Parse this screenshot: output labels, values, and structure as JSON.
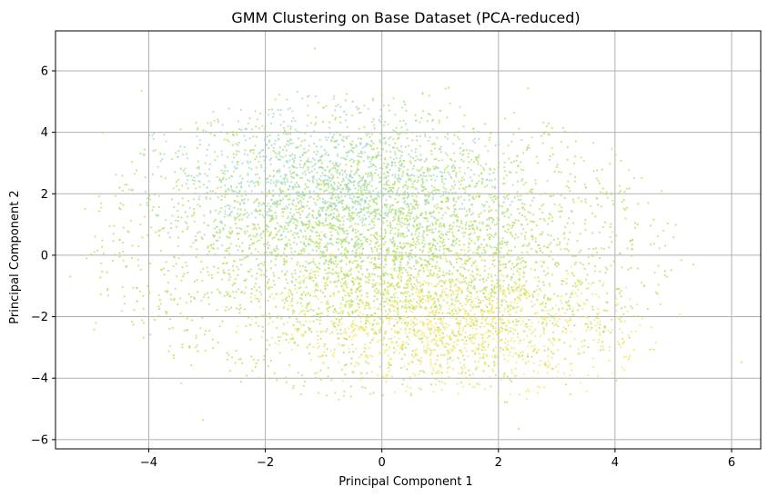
{
  "chart_data": {
    "type": "scatter",
    "title": "GMM Clustering on Base Dataset (PCA-reduced)",
    "xlabel": "Principal Component 1",
    "ylabel": "Principal Component 2",
    "xlim": [
      -5.6,
      6.5
    ],
    "ylim": [
      -6.3,
      7.3
    ],
    "xticks": [
      -4,
      -2,
      0,
      2,
      4,
      6
    ],
    "yticks": [
      -6,
      -4,
      -2,
      0,
      2,
      4,
      6
    ],
    "xtick_labels": [
      "−4",
      "−2",
      "0",
      "2",
      "4",
      "6"
    ],
    "ytick_labels": [
      "−6",
      "−4",
      "−2",
      "0",
      "2",
      "4",
      "6"
    ],
    "grid": true,
    "legend": "none",
    "series": [
      {
        "color": "#b5df5e",
        "shape": "ellipse",
        "center": [
          0.0,
          0.3
        ],
        "radius": [
          4.6,
          4.4
        ],
        "tilt_deg": -20,
        "values_note_points": [
          [
            -4.5,
            2.2
          ],
          [
            -3.8,
            3.3
          ],
          [
            -2.5,
            4.0
          ],
          [
            -1.0,
            4.8
          ],
          [
            0.0,
            5.2
          ],
          [
            1.0,
            4.7
          ],
          [
            2.5,
            3.5
          ],
          [
            3.5,
            2.2
          ],
          [
            4.3,
            0.5
          ],
          [
            4.5,
            -1.0
          ],
          [
            3.8,
            -2.5
          ],
          [
            2.5,
            -3.3
          ],
          [
            1.0,
            -3.6
          ],
          [
            -0.5,
            -3.8
          ],
          [
            -2.0,
            -3.9
          ],
          [
            -3.3,
            -3.0
          ],
          [
            -4.2,
            -1.5
          ],
          [
            -4.5,
            0.5
          ]
        ]
      },
      {
        "color": "#9fd8c8",
        "shape": "ellipse",
        "center": [
          -0.8,
          2.2
        ],
        "radius": [
          3.2,
          2.6
        ],
        "tilt_deg": -15,
        "values_note_points": [
          [
            -3.5,
            3.2
          ],
          [
            -2.0,
            4.2
          ],
          [
            -0.5,
            5.0
          ],
          [
            0.8,
            4.6
          ],
          [
            2.0,
            3.6
          ],
          [
            1.5,
            1.5
          ],
          [
            -0.5,
            0.8
          ],
          [
            -2.5,
            1.2
          ],
          [
            -3.0,
            2.2
          ]
        ]
      },
      {
        "color": "#f4e667",
        "shape": "ellipse",
        "center": [
          1.2,
          -2.2
        ],
        "radius": [
          3.2,
          2.2
        ],
        "tilt_deg": -10,
        "values_note_points": [
          [
            -1.0,
            -3.5
          ],
          [
            0.5,
            -4.5
          ],
          [
            1.5,
            -4.2
          ],
          [
            2.8,
            -3.5
          ],
          [
            3.5,
            -2.0
          ],
          [
            2.5,
            -1.2
          ],
          [
            0.8,
            -1.5
          ],
          [
            -0.8,
            -2.2
          ],
          [
            -2.5,
            -2.5
          ]
        ]
      }
    ]
  }
}
